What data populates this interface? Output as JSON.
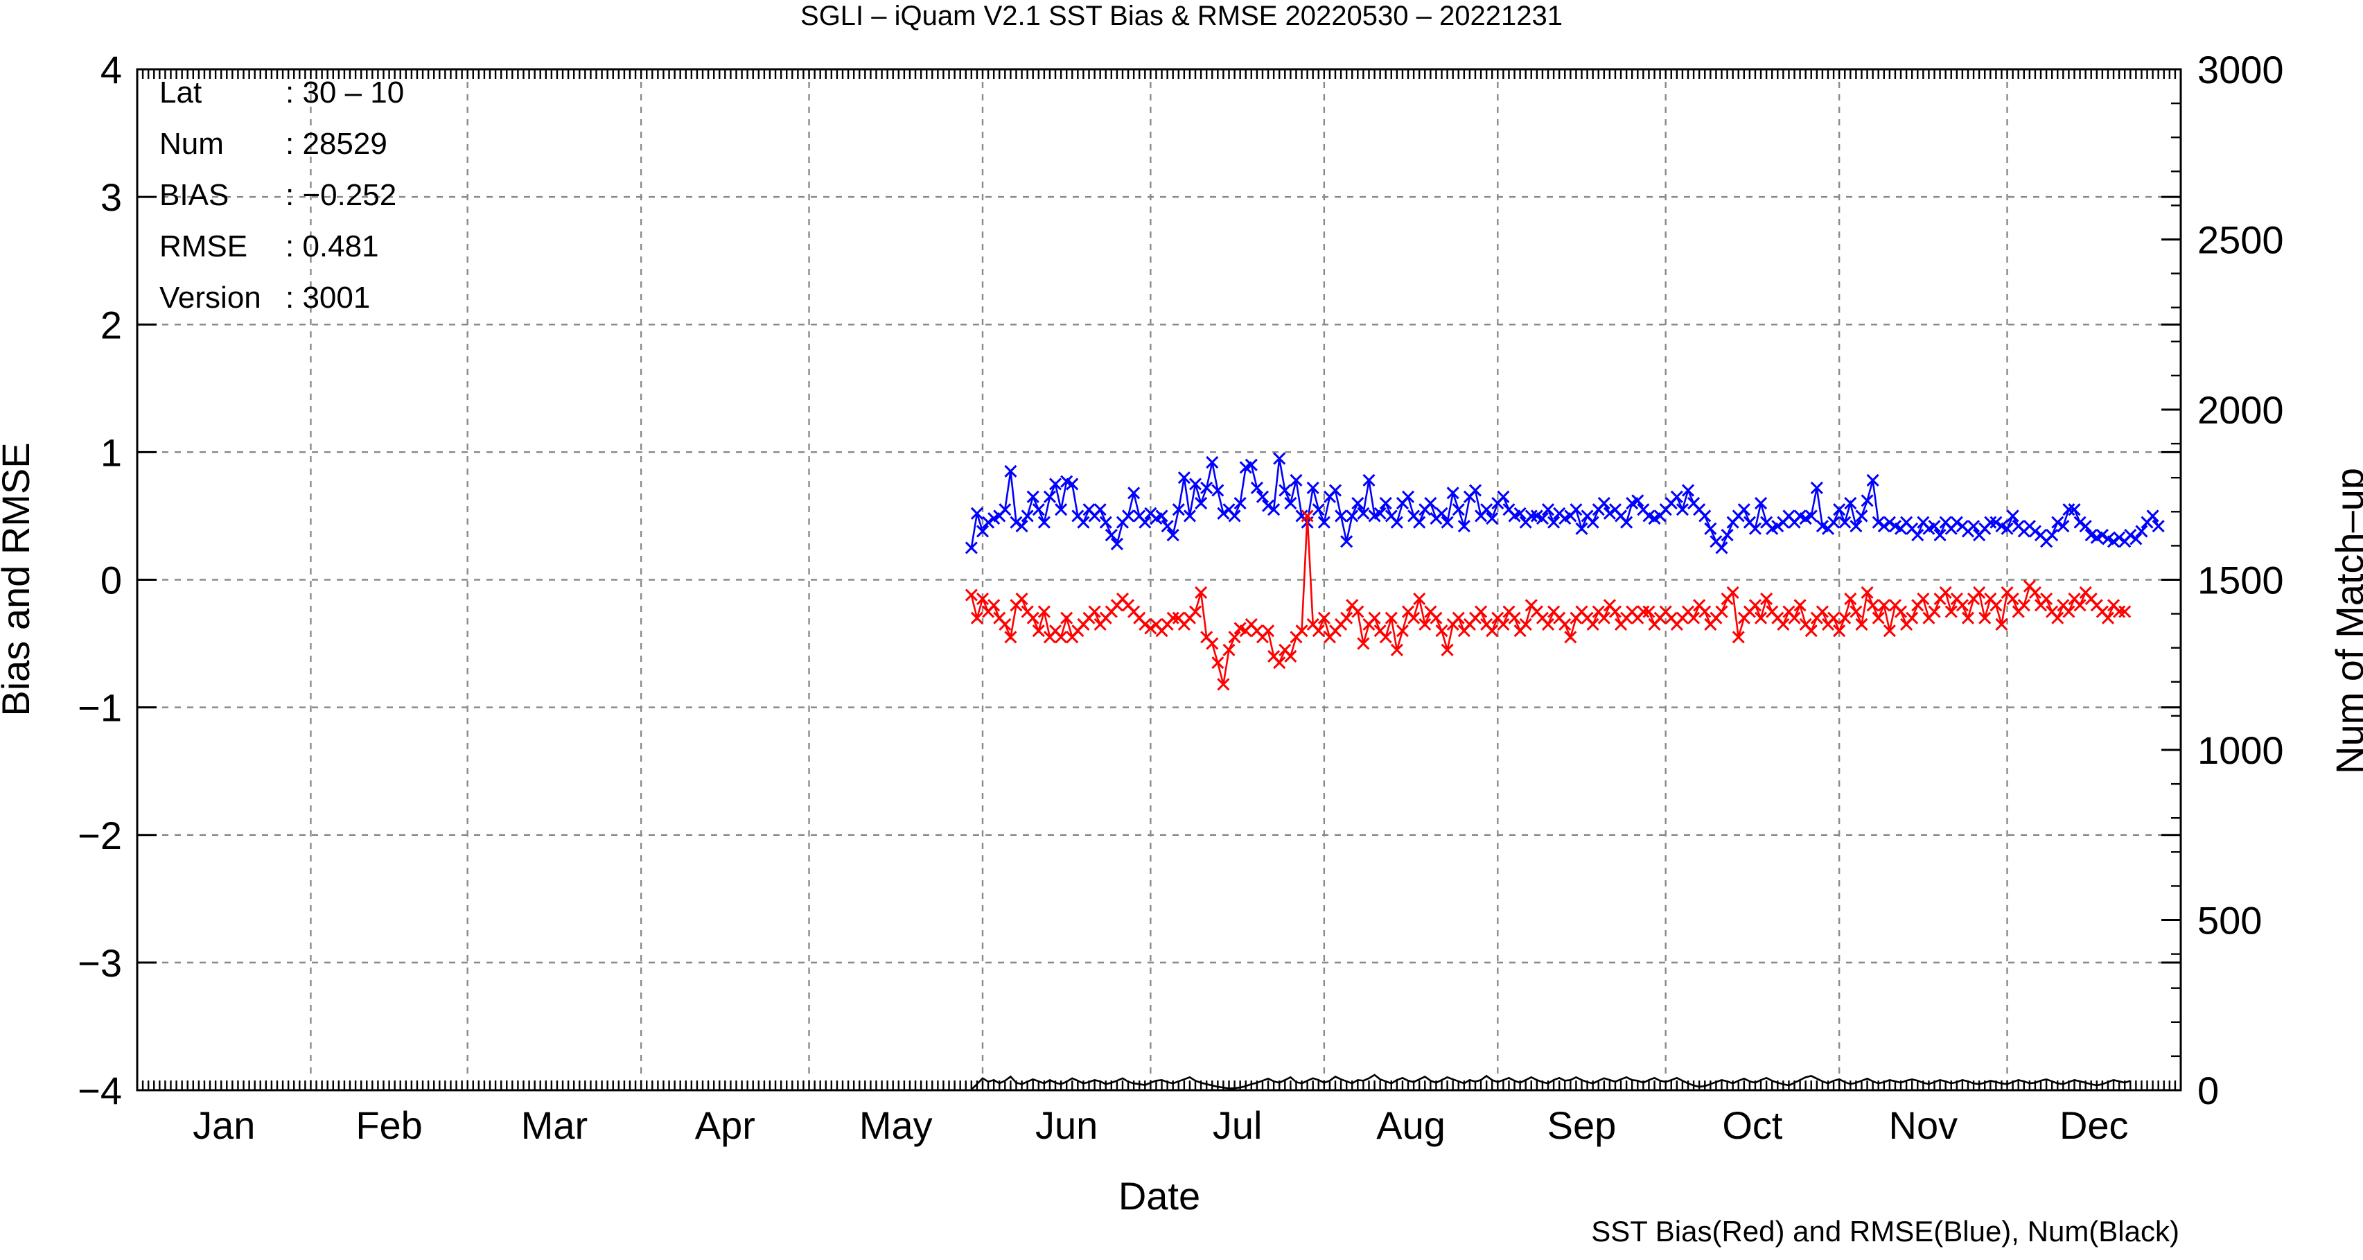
{
  "chart_data": {
    "type": "line",
    "title": "SGLI – iQuam V2.1 SST Bias & RMSE 20220530 – 20221231",
    "xlabel": "Date",
    "ylabel_left": "Bias and RMSE",
    "ylabel_right": "Num of Match–up",
    "ylim_left": [
      -4,
      4
    ],
    "ylim_right": [
      0,
      3000
    ],
    "yticks_left": [
      "−4",
      "−3",
      "−2",
      "−1",
      "0",
      "1",
      "2",
      "3",
      "4"
    ],
    "yticks_right": [
      "0",
      "500",
      "1000",
      "1500",
      "2000",
      "2500",
      "3000"
    ],
    "months": [
      "Jan",
      "Feb",
      "Mar",
      "Apr",
      "May",
      "Jun",
      "Jul",
      "Aug",
      "Sep",
      "Oct",
      "Nov",
      "Dec"
    ],
    "x_range": [
      "2022-01-01",
      "2022-12-31"
    ],
    "grid": true,
    "legend_note": "SST Bias(Red) and RMSE(Blue), Num(Black)",
    "colors": {
      "bias": "#ff0000",
      "rmse": "#0000ff",
      "num": "#000000"
    },
    "stats": [
      {
        "label": "Lat",
        "value": ": 30 – 10"
      },
      {
        "label": "Num",
        "value": ": 28529"
      },
      {
        "label": "BIAS",
        "value": ": −0.252"
      },
      {
        "label": "RMSE",
        "value": ": 0.481"
      },
      {
        "label": "Version",
        "value": ": 3001"
      }
    ],
    "series": [
      {
        "name": "RMSE",
        "axis": "left",
        "marker": "x",
        "x_start": "2022-05-30",
        "y": [
          0.25,
          0.52,
          0.38,
          0.45,
          0.48,
          0.5,
          0.55,
          0.85,
          0.45,
          0.42,
          0.5,
          0.65,
          0.55,
          0.45,
          0.65,
          0.75,
          0.55,
          0.77,
          0.75,
          0.5,
          0.45,
          0.55,
          0.5,
          0.55,
          0.45,
          0.35,
          0.28,
          0.45,
          0.5,
          0.68,
          0.5,
          0.45,
          0.52,
          0.48,
          0.5,
          0.42,
          0.35,
          0.55,
          0.8,
          0.5,
          0.75,
          0.6,
          0.72,
          0.92,
          0.7,
          0.52,
          0.55,
          0.5,
          0.6,
          0.88,
          0.9,
          0.72,
          0.65,
          0.58,
          0.55,
          0.95,
          0.7,
          0.6,
          0.78,
          0.5,
          0.45,
          0.72,
          0.55,
          0.45,
          0.65,
          0.7,
          0.5,
          0.3,
          0.5,
          0.6,
          0.52,
          0.78,
          0.5,
          0.52,
          0.6,
          0.5,
          0.45,
          0.6,
          0.65,
          0.5,
          0.45,
          0.55,
          0.6,
          0.48,
          0.52,
          0.45,
          0.68,
          0.55,
          0.42,
          0.65,
          0.7,
          0.5,
          0.55,
          0.48,
          0.6,
          0.65,
          0.55,
          0.5,
          0.52,
          0.45,
          0.5,
          0.5,
          0.48,
          0.55,
          0.45,
          0.52,
          0.48,
          0.5,
          0.55,
          0.4,
          0.5,
          0.45,
          0.55,
          0.6,
          0.52,
          0.55,
          0.5,
          0.45,
          0.6,
          0.62,
          0.55,
          0.5,
          0.48,
          0.5,
          0.55,
          0.6,
          0.65,
          0.55,
          0.7,
          0.6,
          0.55,
          0.5,
          0.4,
          0.3,
          0.25,
          0.35,
          0.45,
          0.5,
          0.55,
          0.45,
          0.4,
          0.6,
          0.45,
          0.4,
          0.42,
          0.45,
          0.5,
          0.45,
          0.5,
          0.48,
          0.5,
          0.72,
          0.42,
          0.4,
          0.45,
          0.55,
          0.45,
          0.6,
          0.42,
          0.5,
          0.62,
          0.78,
          0.45,
          0.42,
          0.45,
          0.42,
          0.4,
          0.45,
          0.4,
          0.35,
          0.45,
          0.4,
          0.42,
          0.35,
          0.45,
          0.4,
          0.45,
          0.42,
          0.38,
          0.42,
          0.35,
          0.4,
          0.45,
          0.45,
          0.42,
          0.4,
          0.5,
          0.42,
          0.38,
          0.42,
          0.38,
          0.35,
          0.3,
          0.35,
          0.45,
          0.42,
          0.55,
          0.55,
          0.45,
          0.42,
          0.35,
          0.33,
          0.35,
          0.32,
          0.3,
          0.33,
          0.3,
          0.35,
          0.32,
          0.38,
          0.45,
          0.5,
          0.42
        ]
      },
      {
        "name": "BIAS",
        "axis": "left",
        "marker": "x",
        "x_start": "2022-05-30",
        "y": [
          -0.12,
          -0.3,
          -0.15,
          -0.25,
          -0.2,
          -0.3,
          -0.35,
          -0.45,
          -0.2,
          -0.15,
          -0.25,
          -0.3,
          -0.4,
          -0.25,
          -0.45,
          -0.4,
          -0.45,
          -0.3,
          -0.45,
          -0.4,
          -0.35,
          -0.3,
          -0.25,
          -0.35,
          -0.3,
          -0.25,
          -0.2,
          -0.15,
          -0.2,
          -0.25,
          -0.3,
          -0.35,
          -0.38,
          -0.35,
          -0.4,
          -0.35,
          -0.3,
          -0.3,
          -0.35,
          -0.3,
          -0.25,
          -0.1,
          -0.45,
          -0.5,
          -0.65,
          -0.82,
          -0.55,
          -0.45,
          -0.38,
          -0.4,
          -0.35,
          -0.4,
          -0.45,
          -0.4,
          -0.6,
          -0.65,
          -0.55,
          -0.6,
          -0.45,
          -0.4,
          0.5,
          -0.35,
          -0.4,
          -0.3,
          -0.45,
          -0.4,
          -0.35,
          -0.3,
          -0.2,
          -0.25,
          -0.5,
          -0.35,
          -0.3,
          -0.4,
          -0.45,
          -0.3,
          -0.55,
          -0.4,
          -0.25,
          -0.3,
          -0.15,
          -0.35,
          -0.25,
          -0.3,
          -0.4,
          -0.55,
          -0.35,
          -0.3,
          -0.4,
          -0.35,
          -0.3,
          -0.25,
          -0.35,
          -0.4,
          -0.3,
          -0.35,
          -0.25,
          -0.3,
          -0.4,
          -0.35,
          -0.2,
          -0.25,
          -0.3,
          -0.35,
          -0.25,
          -0.3,
          -0.35,
          -0.45,
          -0.3,
          -0.25,
          -0.3,
          -0.35,
          -0.25,
          -0.3,
          -0.2,
          -0.25,
          -0.35,
          -0.3,
          -0.25,
          -0.3,
          -0.25,
          -0.25,
          -0.35,
          -0.3,
          -0.25,
          -0.3,
          -0.35,
          -0.3,
          -0.25,
          -0.3,
          -0.2,
          -0.25,
          -0.35,
          -0.3,
          -0.25,
          -0.15,
          -0.1,
          -0.45,
          -0.3,
          -0.25,
          -0.2,
          -0.3,
          -0.15,
          -0.25,
          -0.3,
          -0.35,
          -0.25,
          -0.3,
          -0.2,
          -0.35,
          -0.4,
          -0.3,
          -0.25,
          -0.35,
          -0.3,
          -0.4,
          -0.3,
          -0.15,
          -0.25,
          -0.35,
          -0.1,
          -0.2,
          -0.3,
          -0.2,
          -0.4,
          -0.2,
          -0.25,
          -0.35,
          -0.3,
          -0.2,
          -0.15,
          -0.3,
          -0.25,
          -0.15,
          -0.1,
          -0.25,
          -0.15,
          -0.2,
          -0.3,
          -0.15,
          -0.1,
          -0.3,
          -0.15,
          -0.2,
          -0.35,
          -0.1,
          -0.15,
          -0.25,
          -0.2,
          -0.05,
          -0.1,
          -0.2,
          -0.15,
          -0.25,
          -0.3,
          -0.2,
          -0.25,
          -0.15,
          -0.2,
          -0.1,
          -0.15,
          -0.2,
          -0.25,
          -0.3,
          -0.2,
          -0.25,
          -0.25
        ]
      },
      {
        "name": "Num",
        "axis": "right",
        "marker": "none",
        "x_start": "2022-05-30",
        "y": [
          2,
          18,
          35,
          25,
          30,
          20,
          28,
          40,
          22,
          18,
          25,
          32,
          26,
          20,
          30,
          22,
          18,
          25,
          35,
          28,
          20,
          24,
          30,
          26,
          18,
          22,
          28,
          35,
          25,
          20,
          18,
          15,
          22,
          28,
          30,
          24,
          20,
          26,
          32,
          38,
          28,
          22,
          18,
          14,
          10,
          8,
          5,
          6,
          8,
          12,
          18,
          22,
          28,
          34,
          26,
          22,
          30,
          38,
          24,
          20,
          28,
          35,
          30,
          22,
          28,
          40,
          32,
          26,
          20,
          30,
          28,
          35,
          45,
          32,
          26,
          20,
          30,
          36,
          28,
          24,
          32,
          40,
          28,
          22,
          30,
          38,
          32,
          26,
          20,
          30,
          25,
          30,
          42,
          30,
          24,
          30,
          36,
          28,
          22,
          30,
          38,
          30,
          24,
          20,
          30,
          36,
          28,
          30,
          38,
          30,
          24,
          20,
          28,
          35,
          30,
          25,
          32,
          38,
          30,
          28,
          22,
          30,
          36,
          28,
          24,
          30,
          36,
          28,
          20,
          14,
          10,
          12,
          18,
          24,
          30,
          26,
          20,
          28,
          34,
          26,
          22,
          30,
          36,
          28,
          22,
          18,
          14,
          22,
          30,
          38,
          42,
          34,
          26,
          20,
          28,
          32,
          24,
          18,
          22,
          28,
          34,
          26,
          20,
          24,
          30,
          26,
          22,
          28,
          32,
          28,
          22,
          18,
          24,
          30,
          26,
          20,
          24,
          30,
          26,
          20,
          18,
          22,
          28,
          24,
          20,
          18,
          24,
          30,
          26,
          20,
          22,
          28,
          32,
          26,
          20,
          18,
          24,
          30,
          26,
          22,
          18,
          14,
          18,
          24,
          30,
          26,
          22,
          28
        ]
      }
    ]
  }
}
